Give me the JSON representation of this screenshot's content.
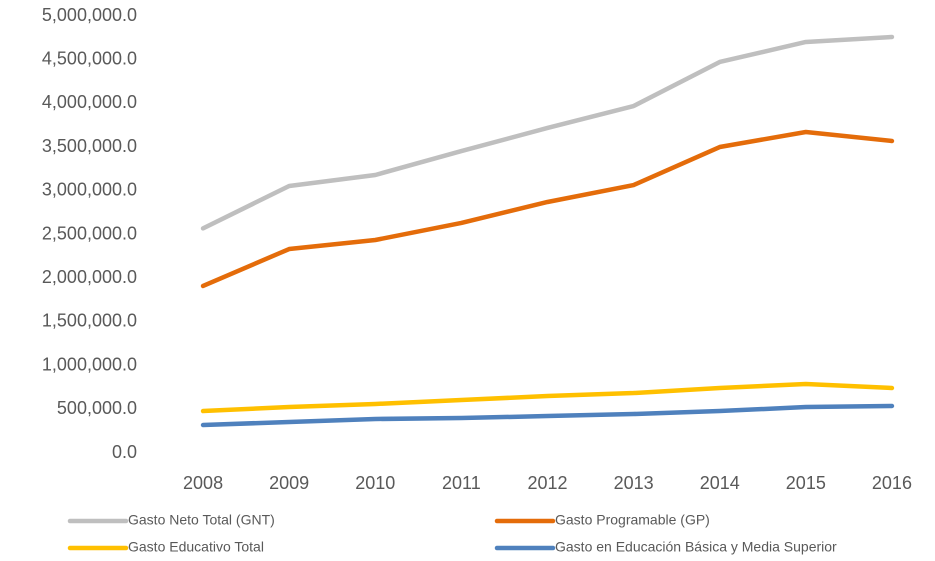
{
  "chart_data": {
    "type": "line",
    "categories": [
      "2008",
      "2009",
      "2010",
      "2011",
      "2012",
      "2013",
      "2014",
      "2015",
      "2016"
    ],
    "series": [
      {
        "name": "Gasto Neto Total (GNT)",
        "color": "#bfbfbf",
        "values": [
          2570000,
          3055000,
          3181000,
          3455000,
          3719000,
          3970000,
          4474000,
          4703000,
          4760000
        ]
      },
      {
        "name": "Gasto Programable (GP)",
        "color": "#e46c0a",
        "values": [
          1911000,
          2334000,
          2437000,
          2632000,
          2872000,
          3066000,
          3501000,
          3673000,
          3570000
        ]
      },
      {
        "name": "Gasto Educativo Total",
        "color": "#ffc000",
        "values": [
          480000,
          526000,
          561000,
          606000,
          652000,
          686000,
          744000,
          789000,
          744000
        ]
      },
      {
        "name": "Gasto en Educación Básica y Media Superior",
        "color": "#4f81bd",
        "values": [
          320000,
          355000,
          389000,
          400000,
          423000,
          446000,
          480000,
          526000,
          538000
        ]
      }
    ],
    "ylim": [
      0,
      5000000
    ],
    "yticks": [
      {
        "value": 0,
        "label": "0.0"
      },
      {
        "value": 500000,
        "label": "500,000.0"
      },
      {
        "value": 1000000,
        "label": "1,000,000.0"
      },
      {
        "value": 1500000,
        "label": "1,500,000.0"
      },
      {
        "value": 2000000,
        "label": "2,000,000.0"
      },
      {
        "value": 2500000,
        "label": "2,500,000.0"
      },
      {
        "value": 3000000,
        "label": "3,000,000.0"
      },
      {
        "value": 3500000,
        "label": "3,500,000.0"
      },
      {
        "value": 4000000,
        "label": "4,000,000.0"
      },
      {
        "value": 4500000,
        "label": "4,500,000.0"
      },
      {
        "value": 5000000,
        "label": "5,000,000.0"
      }
    ],
    "grid": false,
    "legend": "bottom"
  }
}
